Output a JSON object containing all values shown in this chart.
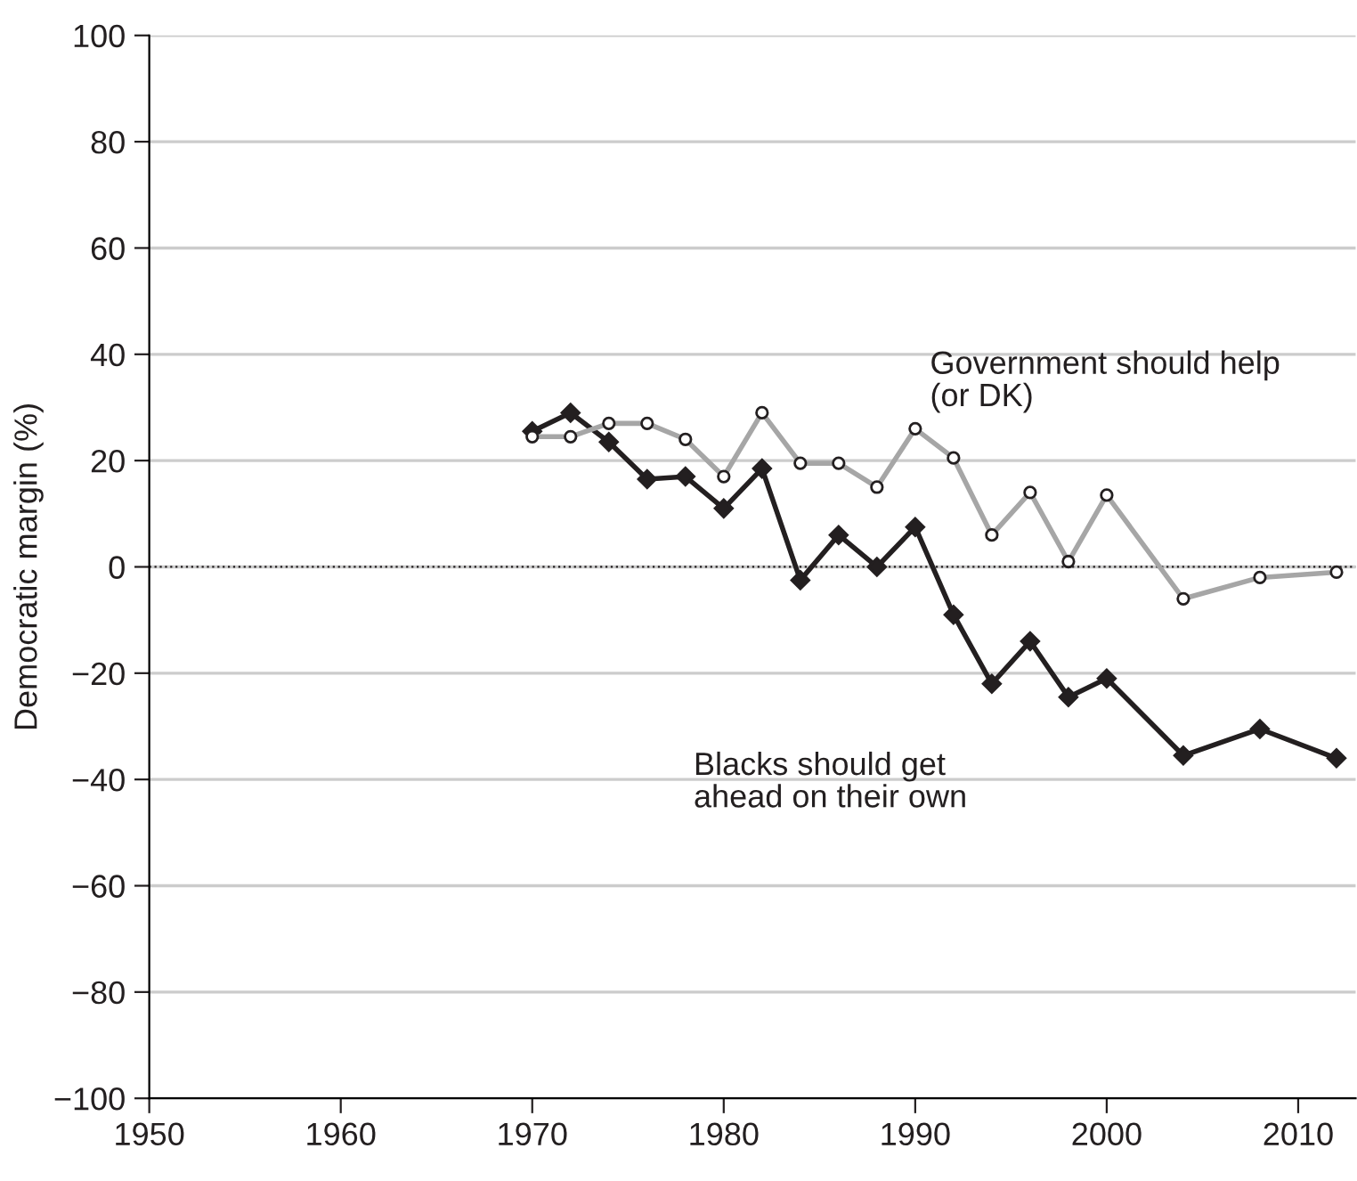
{
  "chart_data": {
    "type": "line",
    "ylabel": "Democratic margin (%)",
    "x": [
      1970,
      1972,
      1974,
      1976,
      1978,
      1980,
      1982,
      1984,
      1986,
      1988,
      1990,
      1992,
      1994,
      1996,
      1998,
      2000,
      2004,
      2008,
      2012
    ],
    "series": [
      {
        "name": "Government should help (or DK)",
        "color": "#a6a6a6",
        "marker": "circle",
        "values": [
          24.5,
          24.5,
          27,
          27,
          24,
          17,
          29,
          19.5,
          19.5,
          15,
          26,
          20.5,
          6,
          14,
          1,
          13.5,
          -6,
          -2,
          -1
        ]
      },
      {
        "name": "Blacks should get ahead on their own",
        "color": "#231f20",
        "marker": "diamond",
        "values": [
          25.5,
          29,
          23.5,
          16.5,
          17,
          11,
          18.5,
          -2.5,
          6,
          0,
          7.5,
          -9,
          -22,
          -14,
          -24.5,
          -21,
          -35.5,
          -30.5,
          -36
        ]
      }
    ],
    "xlim": [
      1950,
      2013
    ],
    "xticks": [
      1950,
      1960,
      1970,
      1980,
      1990,
      2000,
      2010
    ],
    "ylim": [
      -100,
      100
    ],
    "yticks": [
      {
        "value": -100,
        "label": "−100"
      },
      {
        "value": -80,
        "label": "−80"
      },
      {
        "value": -60,
        "label": "−60"
      },
      {
        "value": -40,
        "label": "−40"
      },
      {
        "value": -20,
        "label": "−20"
      },
      0,
      20,
      40,
      60,
      80,
      100
    ],
    "ref_lines": [
      {
        "axis": "y",
        "value": 0,
        "color": "#231f20",
        "line_style": "dotted"
      }
    ],
    "grid": "y",
    "line_style": "solid",
    "legend": false
  }
}
